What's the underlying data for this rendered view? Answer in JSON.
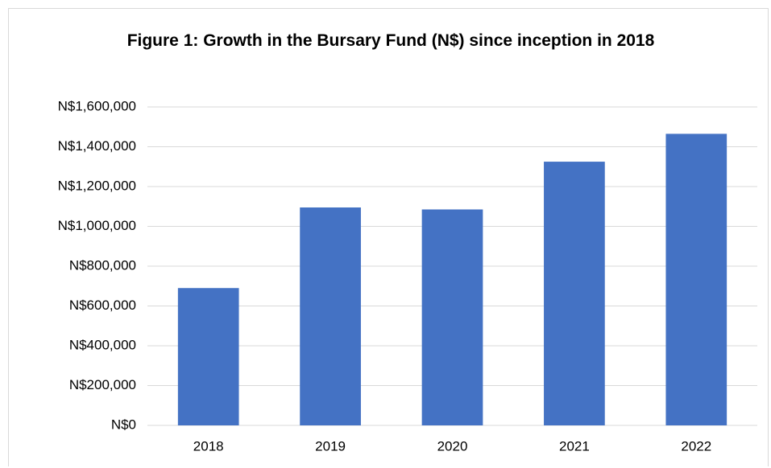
{
  "chart_data": {
    "type": "bar",
    "title": "Figure 1: Growth in the Bursary Fund (N$) since inception in 2018",
    "categories": [
      "2018",
      "2019",
      "2020",
      "2021",
      "2022"
    ],
    "values": [
      690000,
      1095000,
      1085000,
      1325000,
      1465000
    ],
    "color": "#4472c4",
    "ylim": [
      0,
      1600000
    ],
    "yticks": [
      {
        "value": 0,
        "label": "N$0"
      },
      {
        "value": 200000,
        "label": "N$200,000"
      },
      {
        "value": 400000,
        "label": "N$400,000"
      },
      {
        "value": 600000,
        "label": "N$600,000"
      },
      {
        "value": 800000,
        "label": "N$800,000"
      },
      {
        "value": 1000000,
        "label": "N$1,000,000"
      },
      {
        "value": 1200000,
        "label": "N$1,200,000"
      },
      {
        "value": 1400000,
        "label": "N$1,400,000"
      },
      {
        "value": 1600000,
        "label": "N$1,600,000"
      }
    ],
    "grid": true
  }
}
